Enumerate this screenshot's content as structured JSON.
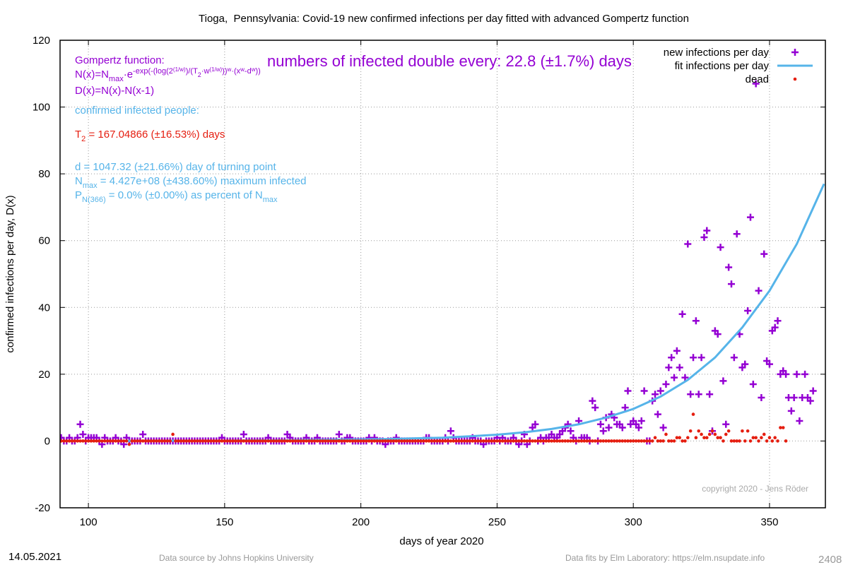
{
  "chart_data": {
    "type": "scatter",
    "title": "Tioga,  Pennsylvania: Covid-19 new confirmed infections per day fitted with advanced Gompertz function",
    "xlabel": "days of year 2020",
    "ylabel": "confirmed infections per day, D(x)",
    "xlim": [
      89.6,
      370.5
    ],
    "ylim": [
      -20,
      120
    ],
    "xticks": [
      100,
      150,
      200,
      250,
      300,
      350
    ],
    "yticks": [
      -20,
      0,
      20,
      40,
      60,
      80,
      100,
      120
    ],
    "grid": true,
    "legend": "top-right",
    "x": [
      89,
      90,
      91,
      92,
      93,
      94,
      95,
      96,
      97,
      98,
      99,
      100,
      101,
      102,
      103,
      104,
      105,
      106,
      107,
      108,
      109,
      110,
      111,
      112,
      113,
      114,
      115,
      116,
      117,
      118,
      119,
      120,
      121,
      122,
      123,
      124,
      125,
      126,
      127,
      128,
      129,
      130,
      131,
      132,
      133,
      134,
      135,
      136,
      137,
      138,
      139,
      140,
      141,
      142,
      143,
      144,
      145,
      146,
      147,
      148,
      149,
      150,
      151,
      152,
      153,
      154,
      155,
      156,
      157,
      158,
      159,
      160,
      161,
      162,
      163,
      164,
      165,
      166,
      167,
      168,
      169,
      170,
      171,
      172,
      173,
      174,
      175,
      176,
      177,
      178,
      179,
      180,
      181,
      182,
      183,
      184,
      185,
      186,
      187,
      188,
      189,
      190,
      191,
      192,
      193,
      194,
      195,
      196,
      197,
      198,
      199,
      200,
      201,
      202,
      203,
      204,
      205,
      206,
      207,
      208,
      209,
      210,
      211,
      212,
      213,
      214,
      215,
      216,
      217,
      218,
      219,
      220,
      221,
      222,
      223,
      224,
      225,
      226,
      227,
      228,
      229,
      230,
      231,
      232,
      233,
      234,
      235,
      236,
      237,
      238,
      239,
      240,
      241,
      242,
      243,
      244,
      245,
      246,
      247,
      248,
      249,
      250,
      251,
      252,
      253,
      254,
      255,
      256,
      257,
      258,
      259,
      260,
      261,
      262,
      263,
      264,
      265,
      266,
      267,
      268,
      269,
      270,
      271,
      272,
      273,
      274,
      275,
      276,
      277,
      278,
      279,
      280,
      281,
      282,
      283,
      284,
      285,
      286,
      287,
      288,
      289,
      290,
      291,
      292,
      293,
      294,
      295,
      296,
      297,
      298,
      299,
      300,
      301,
      302,
      303,
      304,
      305,
      306,
      307,
      308,
      309,
      310,
      311,
      312,
      313,
      314,
      315,
      316,
      317,
      318,
      319,
      320,
      321,
      322,
      323,
      324,
      325,
      326,
      327,
      328,
      329,
      330,
      331,
      332,
      333,
      334,
      335,
      336,
      337,
      338,
      339,
      340,
      341,
      342,
      343,
      344,
      345,
      346,
      347,
      348,
      349,
      350,
      351,
      352,
      353,
      354,
      355,
      356,
      357,
      358,
      359,
      360,
      361,
      362,
      363,
      364,
      365,
      366
    ],
    "series": [
      {
        "name": "new infections per day",
        "color": "#9400d3",
        "values": [
          0,
          1,
          0,
          0,
          1,
          0,
          0,
          1,
          5,
          2,
          0,
          1,
          1,
          1,
          1,
          0,
          -1,
          1,
          0,
          0,
          0,
          1,
          0,
          0,
          -1,
          1,
          0,
          0,
          0,
          0,
          0,
          2,
          0,
          0,
          0,
          0,
          0,
          0,
          0,
          0,
          0,
          0,
          0,
          0,
          0,
          0,
          0,
          0,
          0,
          0,
          0,
          0,
          0,
          0,
          0,
          0,
          0,
          0,
          0,
          0,
          1,
          0,
          0,
          0,
          0,
          0,
          0,
          0,
          2,
          0,
          0,
          0,
          0,
          0,
          0,
          0,
          0,
          1,
          0,
          0,
          0,
          0,
          0,
          0,
          2,
          1,
          0,
          0,
          0,
          0,
          0,
          1,
          0,
          0,
          0,
          1,
          0,
          0,
          0,
          0,
          0,
          0,
          0,
          2,
          0,
          0,
          1,
          1,
          0,
          0,
          0,
          0,
          0,
          0,
          1,
          0,
          1,
          0,
          0,
          0,
          -1,
          0,
          0,
          0,
          1,
          0,
          0,
          0,
          0,
          0,
          0,
          0,
          0,
          0,
          0,
          1,
          1,
          0,
          0,
          0,
          0,
          0,
          1,
          0,
          3,
          1,
          0,
          0,
          0,
          0,
          0,
          0,
          1,
          0,
          0,
          0,
          -1,
          0,
          0,
          0,
          0,
          1,
          0,
          1,
          0,
          0,
          0,
          1,
          0,
          -1,
          0,
          2,
          -1,
          0,
          4,
          5,
          0,
          1,
          0,
          1,
          1,
          2,
          1,
          1,
          2,
          3,
          4,
          5,
          3,
          1,
          0,
          6,
          1,
          1,
          1,
          0,
          12,
          10,
          0,
          5,
          3,
          7,
          4,
          8,
          7,
          5,
          5,
          4,
          10,
          15,
          5,
          6,
          5,
          4,
          6,
          15,
          0,
          0,
          12,
          14,
          8,
          15,
          4,
          17,
          22,
          25,
          19,
          27,
          22,
          38,
          19,
          59,
          14,
          25,
          36,
          14,
          25,
          61,
          63,
          14,
          3,
          33,
          32,
          58,
          18,
          5,
          52,
          47,
          25,
          62,
          32,
          22,
          23,
          39,
          67,
          17,
          107,
          45,
          13,
          56,
          24,
          23,
          33,
          34,
          36,
          20,
          21,
          20,
          13,
          9,
          13,
          20,
          6,
          13,
          20,
          13,
          12,
          15
        ]
      },
      {
        "name": "fit infections per day",
        "color": "#56b4e9",
        "x": [
          90,
          100,
          110,
          120,
          130,
          140,
          150,
          160,
          170,
          180,
          190,
          200,
          210,
          220,
          230,
          240,
          250,
          260,
          270,
          280,
          290,
          300,
          310,
          320,
          330,
          340,
          350,
          360,
          370
        ],
        "values": [
          0,
          0,
          0,
          0.1,
          0.1,
          0.1,
          0.1,
          0.2,
          0.2,
          0.3,
          0.4,
          0.5,
          0.6,
          0.8,
          1,
          1.4,
          1.9,
          2.6,
          3.6,
          5,
          7,
          9.6,
          13.3,
          18.3,
          25,
          34,
          45,
          59,
          77
        ]
      },
      {
        "name": "dead",
        "color": "#e51e10",
        "values": [
          0,
          0,
          0,
          0,
          0,
          0,
          0,
          0,
          0,
          0,
          0,
          0,
          0,
          0,
          0,
          0,
          0,
          0,
          0,
          0,
          0,
          0,
          0,
          0,
          0,
          0,
          -1,
          0,
          0,
          0,
          0,
          0,
          0,
          0,
          0,
          0,
          0,
          0,
          0,
          0,
          0,
          0,
          2,
          0,
          0,
          0,
          0,
          0,
          0,
          0,
          0,
          0,
          0,
          0,
          0,
          0,
          0,
          0,
          0,
          0,
          0,
          0,
          0,
          0,
          0,
          0,
          0,
          0,
          0,
          0,
          0,
          0,
          0,
          0,
          0,
          0,
          0,
          0,
          0,
          0,
          0,
          0,
          0,
          0,
          0,
          0,
          0,
          0,
          0,
          0,
          0,
          0,
          0,
          0,
          0,
          0,
          0,
          0,
          0,
          0,
          0,
          0,
          0,
          0,
          0,
          0,
          0,
          0,
          0,
          0,
          0,
          0,
          0,
          0,
          0,
          0,
          0,
          0,
          0,
          0,
          0,
          0,
          0,
          0,
          0,
          0,
          0,
          0,
          0,
          0,
          0,
          0,
          0,
          0,
          0,
          0,
          0,
          0,
          0,
          0,
          0,
          0,
          0,
          0,
          0,
          0,
          0,
          0,
          0,
          0,
          0,
          0,
          0,
          0,
          0,
          0,
          0,
          0,
          0,
          0,
          0,
          0,
          0,
          0,
          0,
          0,
          0,
          0,
          0,
          0,
          0,
          0,
          0,
          0,
          0,
          0,
          0,
          0,
          0,
          0,
          0,
          0,
          0,
          0,
          0,
          0,
          0,
          0,
          0,
          0,
          0,
          0,
          0,
          0,
          0,
          0,
          0,
          0,
          0,
          0,
          0,
          0,
          0,
          0,
          0,
          0,
          0,
          0,
          0,
          0,
          0,
          0,
          0,
          0,
          0,
          0,
          0,
          0,
          0,
          1,
          0,
          0,
          0,
          2,
          0,
          0,
          0,
          1,
          1,
          0,
          0,
          1,
          3,
          8,
          1,
          3,
          2,
          1,
          1,
          2,
          3,
          2,
          1,
          1,
          0,
          2,
          3,
          0,
          0,
          0,
          0,
          3,
          0,
          3,
          0,
          1,
          1,
          0,
          1,
          2,
          0,
          1,
          0,
          1,
          0,
          4,
          4,
          0
        ]
      }
    ],
    "headline": "numbers of infected double every: 22.8 (±1.7%) days",
    "annotations": [
      {
        "color": "#9400d3",
        "parts": [
          "Gompertz function:"
        ]
      },
      {
        "color": "#9400d3",
        "parts": [
          "N(x)=N",
          "max",
          "·e",
          "-exp(-(log(2",
          "(1/w)",
          ")/(T",
          "2",
          "·w",
          "(1/w)",
          "))",
          "w",
          "·(x",
          "w",
          "-d",
          "w",
          "))"
        ]
      },
      {
        "color": "#9400d3",
        "parts": [
          "D(x)=N(x)-N(x-1)"
        ]
      },
      {
        "color": "#56b4e9",
        "parts": [
          "confirmed infected people:"
        ]
      },
      {
        "color": "#e51e10",
        "parts": [
          "T",
          "2",
          " = 167.04866 (±16.53%) days"
        ]
      },
      {
        "color": "#56b4e9",
        "parts": [
          "d = 1047.32 (±21.66%) day of turning point"
        ]
      },
      {
        "color": "#56b4e9",
        "parts": [
          "N",
          "max",
          " = 4.427e+08 (±438.60%) maximum infected"
        ]
      },
      {
        "color": "#56b4e9",
        "parts": [
          "P",
          "N(366)",
          " = 0.0% (±0.00%) as percent of N",
          "max"
        ]
      }
    ],
    "copyright": "copyright 2020 - Jens Röder",
    "footer": {
      "date": "14.05.2021",
      "source": "Data source by Johns Hopkins University",
      "fits": "Data fits by Elm Laboratory: https://elm.nsupdate.info",
      "id": "2408"
    }
  }
}
